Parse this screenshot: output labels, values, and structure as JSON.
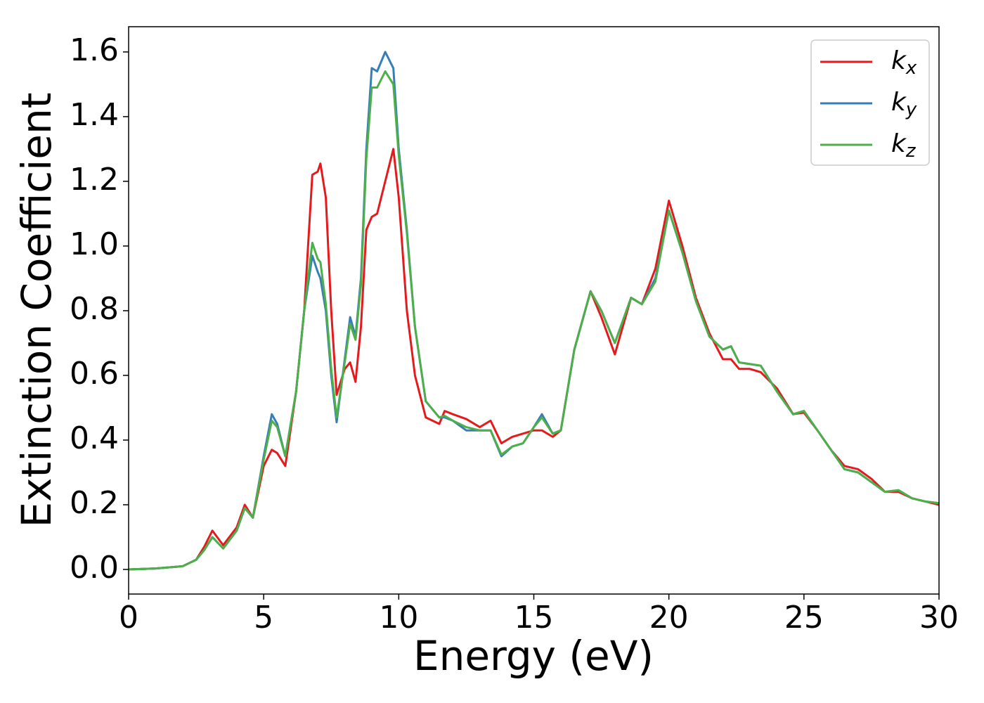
{
  "chart_data": {
    "type": "line",
    "xlabel": "Energy (eV)",
    "ylabel": "Extinction Coefficient",
    "x": [
      0,
      1,
      2,
      2.5,
      2.8,
      3.1,
      3.5,
      4.0,
      4.3,
      4.6,
      5.0,
      5.3,
      5.5,
      5.8,
      6.2,
      6.5,
      6.8,
      7.0,
      7.1,
      7.3,
      7.5,
      7.7,
      8.0,
      8.2,
      8.4,
      8.6,
      8.8,
      9.0,
      9.2,
      9.5,
      9.8,
      10.0,
      10.3,
      10.6,
      11.0,
      11.5,
      11.7,
      12.0,
      12.5,
      13.0,
      13.4,
      13.8,
      14.2,
      14.6,
      15.0,
      15.3,
      15.7,
      16.0,
      16.5,
      17.1,
      17.5,
      18.0,
      18.6,
      19.0,
      19.5,
      20.0,
      20.5,
      21.0,
      21.5,
      22.0,
      22.3,
      22.6,
      23.0,
      23.4,
      24.0,
      24.6,
      25.0,
      25.5,
      26.0,
      26.5,
      27.0,
      27.5,
      28.0,
      28.5,
      29.0,
      29.5,
      30.0
    ],
    "series": [
      {
        "name": "kx",
        "color": "#e41a1c",
        "values": [
          0,
          0.003,
          0.01,
          0.03,
          0.07,
          0.12,
          0.075,
          0.13,
          0.2,
          0.16,
          0.32,
          0.37,
          0.36,
          0.32,
          0.55,
          0.8,
          1.22,
          1.23,
          1.255,
          1.15,
          0.8,
          0.54,
          0.62,
          0.64,
          0.58,
          0.75,
          1.05,
          1.09,
          1.1,
          1.2,
          1.3,
          1.15,
          0.8,
          0.6,
          0.47,
          0.45,
          0.49,
          0.48,
          0.465,
          0.44,
          0.46,
          0.39,
          0.41,
          0.42,
          0.43,
          0.43,
          0.41,
          0.43,
          0.68,
          0.86,
          0.78,
          0.665,
          0.84,
          0.82,
          0.93,
          1.14,
          1.0,
          0.84,
          0.73,
          0.65,
          0.65,
          0.62,
          0.62,
          0.61,
          0.56,
          0.48,
          0.485,
          0.43,
          0.37,
          0.32,
          0.31,
          0.28,
          0.24,
          0.24,
          0.22,
          0.21,
          0.2
        ]
      },
      {
        "name": "ky",
        "color": "#377eb8",
        "values": [
          0,
          0.003,
          0.01,
          0.03,
          0.06,
          0.1,
          0.065,
          0.12,
          0.19,
          0.16,
          0.35,
          0.48,
          0.45,
          0.35,
          0.55,
          0.8,
          0.97,
          0.92,
          0.9,
          0.8,
          0.6,
          0.455,
          0.65,
          0.78,
          0.72,
          0.9,
          1.3,
          1.55,
          1.54,
          1.6,
          1.55,
          1.3,
          1.05,
          0.75,
          0.52,
          0.47,
          0.47,
          0.46,
          0.43,
          0.43,
          0.43,
          0.35,
          0.38,
          0.39,
          0.44,
          0.48,
          0.42,
          0.43,
          0.68,
          0.86,
          0.8,
          0.7,
          0.84,
          0.82,
          0.9,
          1.11,
          0.98,
          0.83,
          0.72,
          0.68,
          0.69,
          0.64,
          0.635,
          0.63,
          0.55,
          0.48,
          0.49,
          0.43,
          0.37,
          0.31,
          0.3,
          0.27,
          0.24,
          0.245,
          0.22,
          0.21,
          0.205
        ]
      },
      {
        "name": "kz",
        "color": "#4daf4a",
        "values": [
          0,
          0.003,
          0.01,
          0.03,
          0.06,
          0.1,
          0.065,
          0.12,
          0.19,
          0.16,
          0.34,
          0.46,
          0.44,
          0.35,
          0.55,
          0.8,
          1.01,
          0.96,
          0.95,
          0.82,
          0.62,
          0.47,
          0.64,
          0.76,
          0.71,
          0.88,
          1.27,
          1.49,
          1.49,
          1.54,
          1.5,
          1.28,
          1.04,
          0.75,
          0.52,
          0.47,
          0.475,
          0.46,
          0.44,
          0.43,
          0.43,
          0.355,
          0.38,
          0.39,
          0.44,
          0.47,
          0.42,
          0.43,
          0.68,
          0.86,
          0.8,
          0.7,
          0.84,
          0.82,
          0.89,
          1.11,
          0.98,
          0.83,
          0.72,
          0.68,
          0.69,
          0.64,
          0.635,
          0.63,
          0.55,
          0.48,
          0.49,
          0.43,
          0.37,
          0.31,
          0.3,
          0.27,
          0.24,
          0.245,
          0.22,
          0.21,
          0.205
        ]
      }
    ],
    "xlim": [
      0,
      30
    ],
    "xticks": [
      0,
      5,
      10,
      15,
      20,
      25,
      30
    ],
    "ylim": [
      -0.076,
      1.678
    ],
    "yticks": [
      {
        "value": 0,
        "label": "0.0"
      },
      0.2,
      0.4,
      0.6,
      0.8,
      {
        "value": 1,
        "label": "1.0"
      },
      1.2,
      1.4,
      1.6
    ],
    "legend": "upper right",
    "grid": false
  }
}
